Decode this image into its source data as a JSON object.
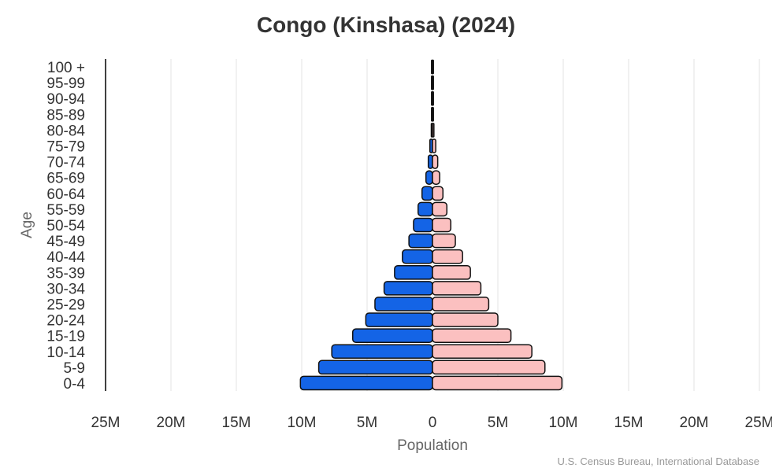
{
  "chart_data": {
    "type": "bar",
    "orientation": "horizontal-pyramid",
    "title": "Congo (Kinshasa) (2024)",
    "xlabel": "Population",
    "ylabel": "Age",
    "credit": "U.S. Census Bureau, International Database",
    "xlim": [
      -25000000,
      25000000
    ],
    "x_ticks": [
      {
        "value": -25000000,
        "label": "25M"
      },
      {
        "value": -20000000,
        "label": "20M"
      },
      {
        "value": -15000000,
        "label": "15M"
      },
      {
        "value": -10000000,
        "label": "10M"
      },
      {
        "value": -5000000,
        "label": "5M"
      },
      {
        "value": 0,
        "label": "0"
      },
      {
        "value": 5000000,
        "label": "5M"
      },
      {
        "value": 10000000,
        "label": "10M"
      },
      {
        "value": 15000000,
        "label": "15M"
      },
      {
        "value": 20000000,
        "label": "20M"
      },
      {
        "value": 25000000,
        "label": "25M"
      }
    ],
    "grid": "vertical",
    "legend": "none",
    "categories": [
      "0-4",
      "5-9",
      "10-14",
      "15-19",
      "20-24",
      "25-29",
      "30-34",
      "35-39",
      "40-44",
      "45-49",
      "50-54",
      "55-59",
      "60-64",
      "65-69",
      "70-74",
      "75-79",
      "80-84",
      "85-89",
      "90-94",
      "95-99",
      "100 +"
    ],
    "series": [
      {
        "side": "left",
        "color": "#1464e6",
        "values": [
          10100000,
          8700000,
          7700000,
          6100000,
          5100000,
          4400000,
          3700000,
          2900000,
          2300000,
          1800000,
          1450000,
          1100000,
          800000,
          500000,
          320000,
          200000,
          90000,
          40000,
          15000,
          5000,
          1000
        ]
      },
      {
        "side": "right",
        "color": "#fbc0c0",
        "values": [
          9900000,
          8600000,
          7600000,
          6000000,
          5000000,
          4300000,
          3700000,
          2900000,
          2300000,
          1750000,
          1400000,
          1100000,
          800000,
          550000,
          400000,
          250000,
          110000,
          50000,
          20000,
          6000,
          1500
        ]
      }
    ]
  }
}
